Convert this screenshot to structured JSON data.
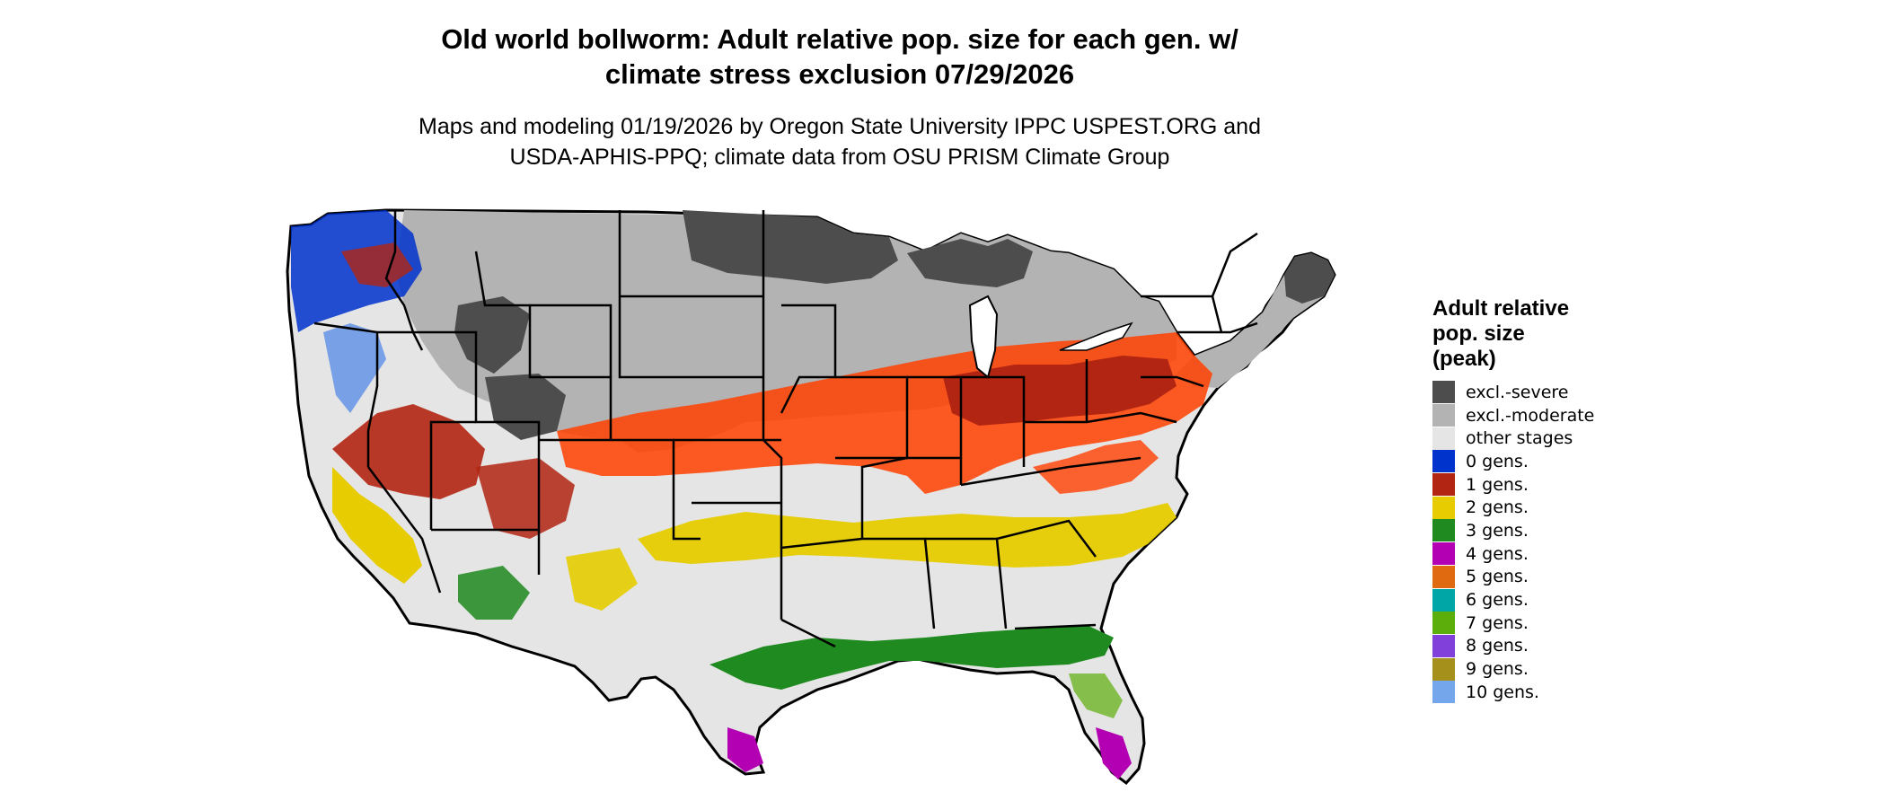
{
  "title": {
    "line1": "Old world bollworm: Adult relative pop. size for each gen. w/",
    "line2": "climate stress exclusion 07/29/2026"
  },
  "subtitle": {
    "line1": "Maps and modeling 01/19/2026 by Oregon State University IPPC USPEST.ORG and",
    "line2": "USDA-APHIS-PPQ; climate data from OSU PRISM Climate Group"
  },
  "legend": {
    "title_line1": "Adult relative",
    "title_line2": "pop. size",
    "title_line3": "(peak)",
    "items": [
      {
        "label": "excl.-severe",
        "color": "#4d4d4d"
      },
      {
        "label": "excl.-moderate",
        "color": "#b3b3b3"
      },
      {
        "label": "other stages",
        "color": "#e5e5e5"
      },
      {
        "label": "0 gens.",
        "color": "#0033cc"
      },
      {
        "label": "1 gens.",
        "color": "#b22512"
      },
      {
        "label": "2 gens.",
        "color": "#e6cc00"
      },
      {
        "label": "3 gens.",
        "color": "#1f8a1f"
      },
      {
        "label": "4 gens.",
        "color": "#b300b3"
      },
      {
        "label": "5 gens.",
        "color": "#e06a10"
      },
      {
        "label": "6 gens.",
        "color": "#00a6a6"
      },
      {
        "label": "7 gens.",
        "color": "#5cae0a"
      },
      {
        "label": "8 gens.",
        "color": "#8040d9"
      },
      {
        "label": "9 gens.",
        "color": "#a6901c"
      },
      {
        "label": "10 gens.",
        "color": "#73a6eb"
      }
    ]
  },
  "map": {
    "region": "Contiguous United States",
    "colors": {
      "background": "#ffffff",
      "state_border": "#000000",
      "bright_orange_red": "#ff4000"
    }
  }
}
